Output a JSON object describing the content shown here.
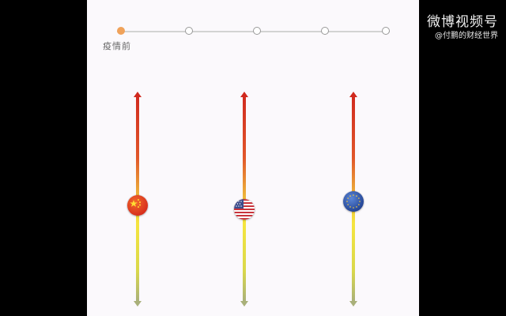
{
  "timeline": {
    "stops": [
      {
        "active": true
      },
      {
        "active": false
      },
      {
        "active": false
      },
      {
        "active": false
      },
      {
        "active": false
      }
    ],
    "current_label": "疫情前"
  },
  "sliders": [
    {
      "icon": "china-flag-icon",
      "level": 0.47
    },
    {
      "icon": "usa-flag-icon",
      "level": 0.45
    },
    {
      "icon": "eu-flag-icon",
      "level": 0.49
    }
  ],
  "watermark": {
    "title": "微博视频号",
    "subtitle": "@付鹏的财经世界"
  },
  "colors": {
    "page_background": "#000000",
    "panel_background": "#fbf9fc",
    "timeline_active": "#f0a25a",
    "bar_top": "#d12b1f",
    "bar_middle": "#f5e53f",
    "bar_bottom": "#a9b07a"
  }
}
